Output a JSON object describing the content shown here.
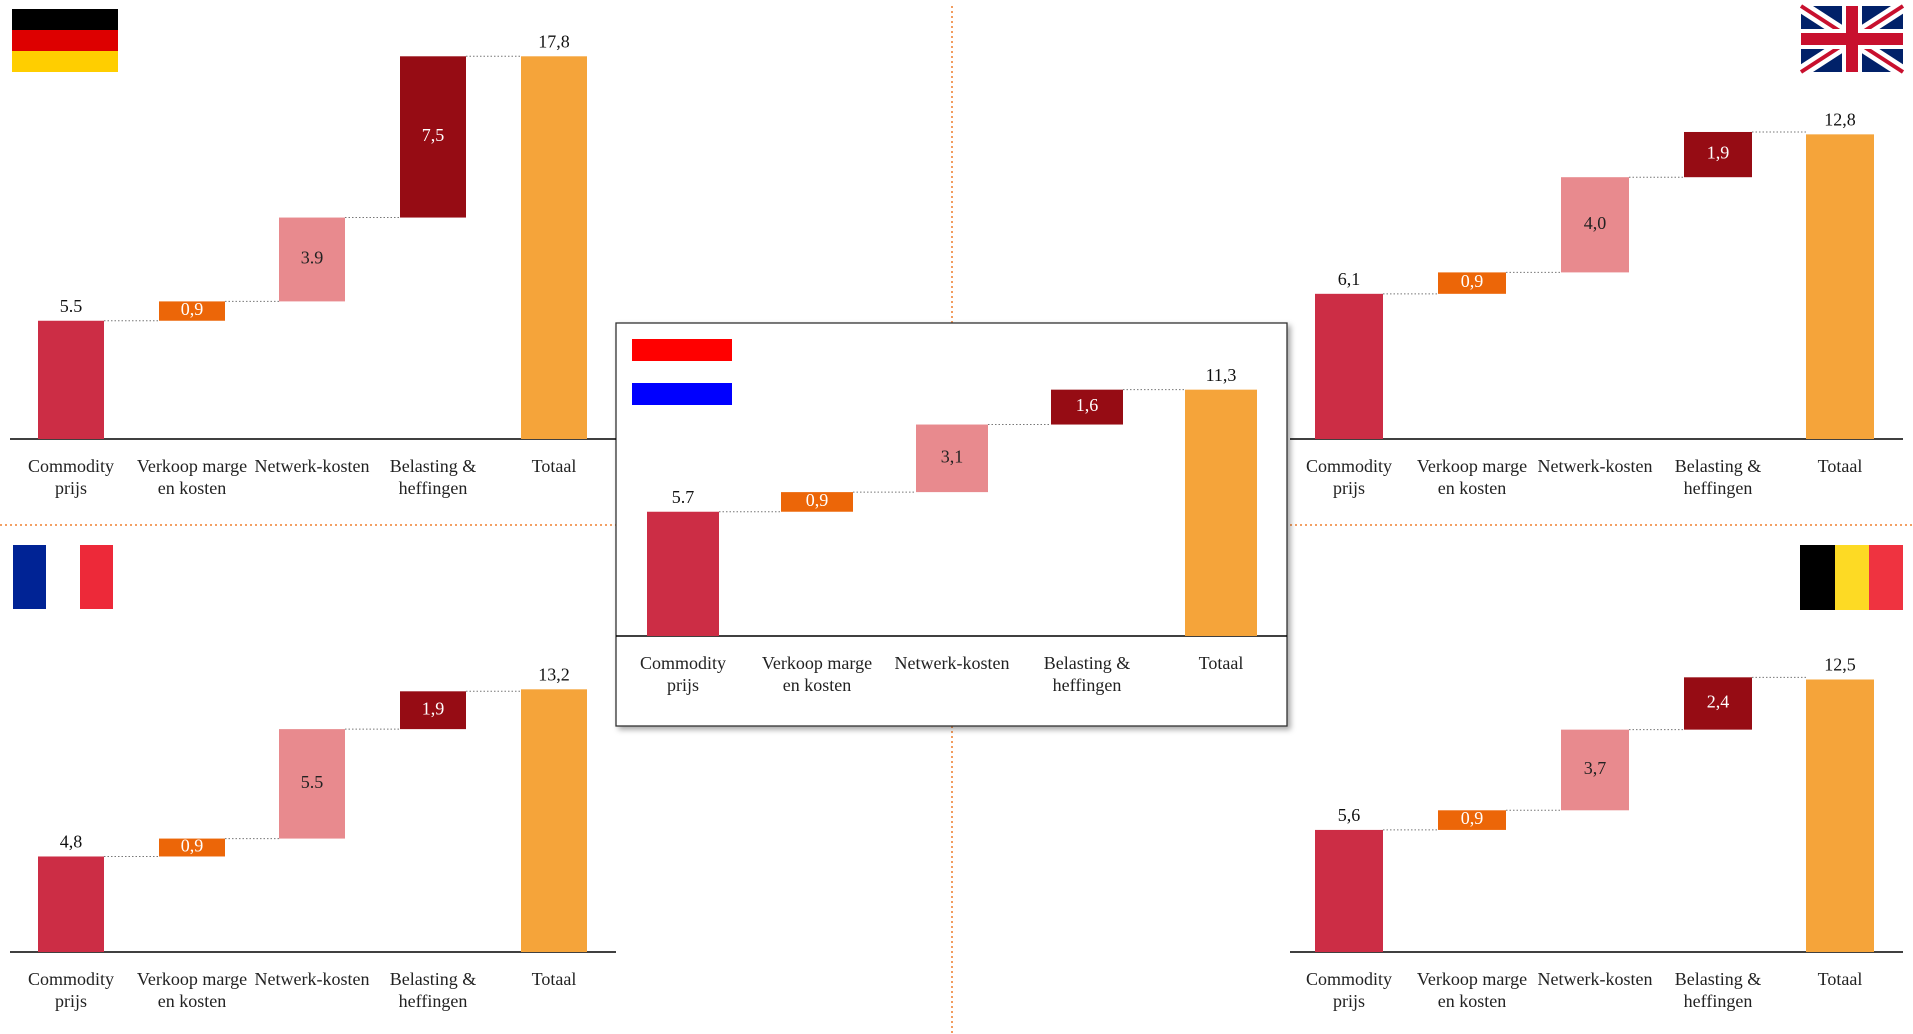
{
  "chart_data": [
    {
      "type": "waterfall",
      "categories": [
        "Commodity prijs",
        "Verkoop marge en kosten",
        "Netwerk-kosten",
        "Belasting & heffingen",
        "Totaal"
      ],
      "values": [
        5.5,
        0.9,
        3.9,
        7.5,
        17.8
      ],
      "value_labels": [
        "5.5",
        "0,9",
        "3.9",
        "7,5",
        "17,8"
      ],
      "colors": [
        "#cc2d45",
        "#ec6608",
        "#e88a8e",
        "#960c14",
        "#f5a43a"
      ]
    },
    {
      "type": "waterfall",
      "categories": [
        "Commodity prijs",
        "Verkoop marge en kosten",
        "Netwerk-kosten",
        "Belasting & heffingen",
        "Totaal"
      ],
      "values": [
        6.1,
        0.9,
        4.0,
        1.9,
        12.8
      ],
      "value_labels": [
        "6,1",
        "0,9",
        "4,0",
        "1,9",
        "12,8"
      ],
      "colors": [
        "#cc2d45",
        "#ec6608",
        "#e88a8e",
        "#960c14",
        "#f5a43a"
      ]
    },
    {
      "type": "waterfall",
      "categories": [
        "Commodity prijs",
        "Verkoop marge en kosten",
        "Netwerk-kosten",
        "Belasting & heffingen",
        "Totaal"
      ],
      "values": [
        4.8,
        0.9,
        5.5,
        1.9,
        13.2
      ],
      "value_labels": [
        "4,8",
        "0,9",
        "5.5",
        "1,9",
        "13,2"
      ],
      "colors": [
        "#cc2d45",
        "#ec6608",
        "#e88a8e",
        "#960c14",
        "#f5a43a"
      ]
    },
    {
      "type": "waterfall",
      "categories": [
        "Commodity prijs",
        "Verkoop marge en kosten",
        "Netwerk-kosten",
        "Belasting & heffingen",
        "Totaal"
      ],
      "values": [
        5.6,
        0.9,
        3.7,
        2.4,
        12.5
      ],
      "value_labels": [
        "5,6",
        "0,9",
        "3,7",
        "2,4",
        "12,5"
      ],
      "colors": [
        "#cc2d45",
        "#ec6608",
        "#e88a8e",
        "#960c14",
        "#f5a43a"
      ]
    },
    {
      "type": "waterfall",
      "categories": [
        "Commodity prijs",
        "Verkoop marge en kosten",
        "Netwerk-kosten",
        "Belasting & heffingen",
        "Totaal"
      ],
      "values": [
        5.7,
        0.9,
        3.1,
        1.6,
        11.3
      ],
      "value_labels": [
        "5.7",
        "0,9",
        "3,1",
        "1,6",
        "11,3"
      ],
      "colors": [
        "#cc2d45",
        "#ec6608",
        "#e88a8e",
        "#960c14",
        "#f5a43a"
      ]
    }
  ]
}
